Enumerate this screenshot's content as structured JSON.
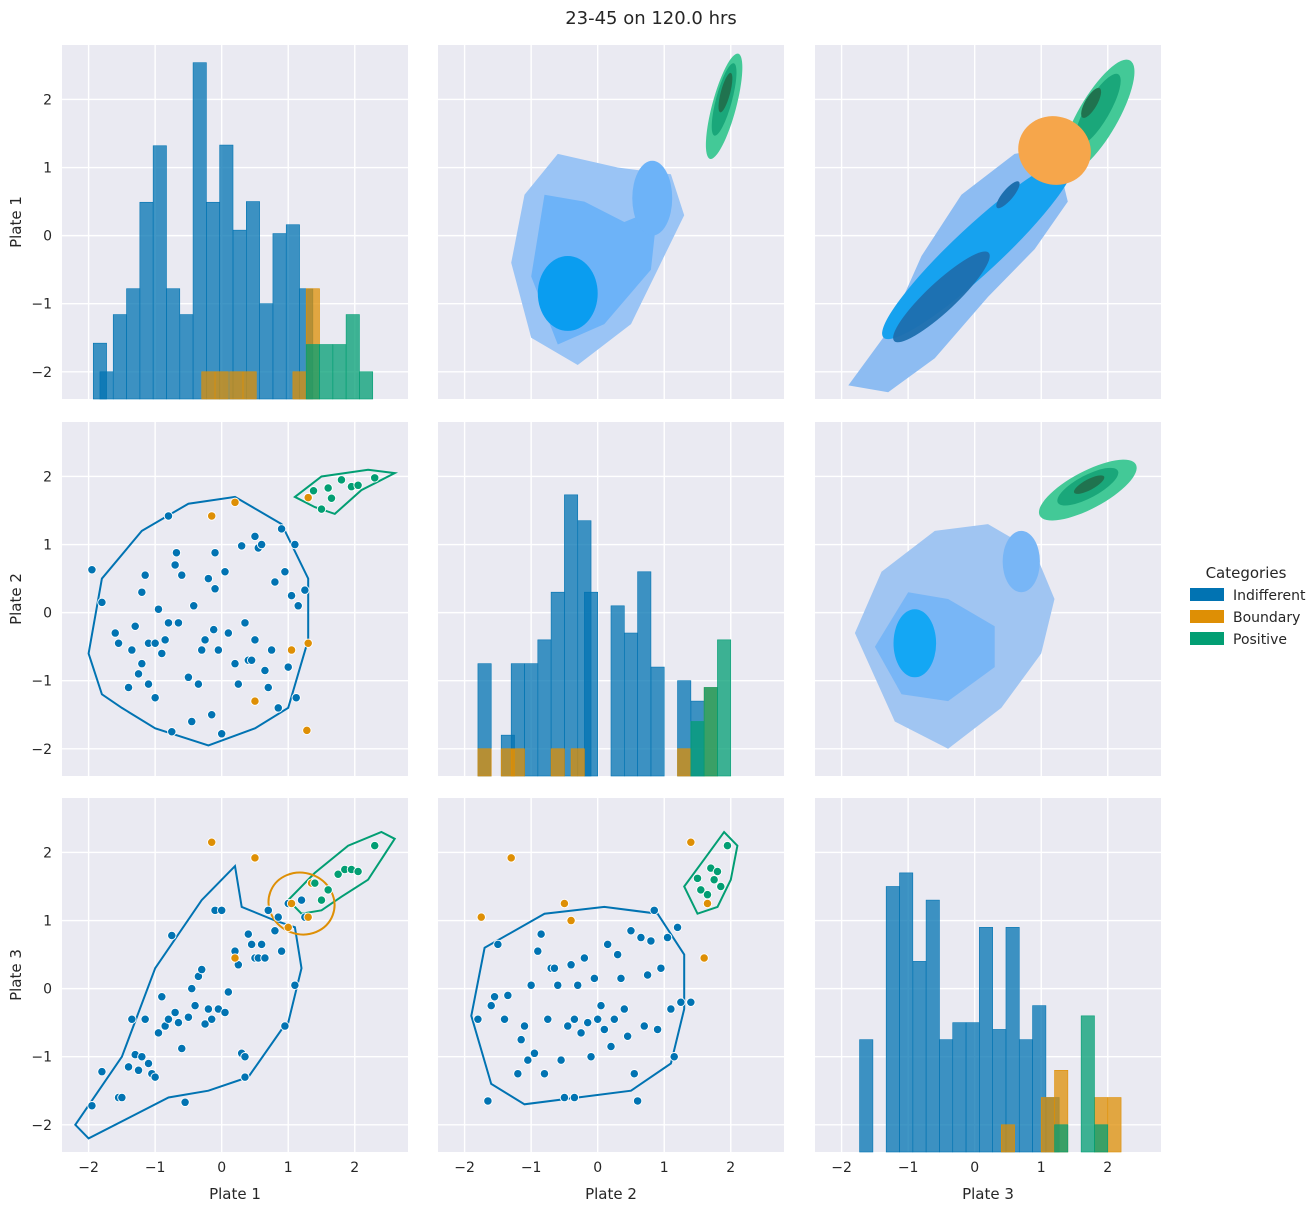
{
  "chart_data": {
    "type": "pairplot",
    "title": "23-45 on 120.0 hrs",
    "variables": [
      "Plate 1",
      "Plate 2",
      "Plate 3"
    ],
    "axis_range": [
      -2.4,
      2.8
    ],
    "ticks": [
      -2,
      -1,
      0,
      1,
      2
    ],
    "tick_labels": [
      "−2",
      "−1",
      "0",
      "1",
      "2"
    ],
    "grid": true,
    "legend": {
      "title": "Categories",
      "placement": "right",
      "items": [
        {
          "name": "Indifferent",
          "color": "#0173b2"
        },
        {
          "name": "Boundary",
          "color": "#de8f05"
        },
        {
          "name": "Positive",
          "color": "#029e73"
        }
      ]
    },
    "panels": {
      "diagonal": "stacked step histograms per category",
      "upper": "filled KDE contours per category",
      "lower": "scatter with one KDE contour line per category"
    },
    "histograms": {
      "Plate 1": {
        "Indifferent": [
          [
            -1.93,
            -1.58
          ],
          [
            -1.83,
            -2.0
          ],
          [
            -1.63,
            -1.16
          ],
          [
            -1.43,
            -0.78
          ],
          [
            -1.23,
            0.49
          ],
          [
            -1.03,
            1.32
          ],
          [
            -0.83,
            -0.78
          ],
          [
            -0.63,
            -1.16
          ],
          [
            -0.43,
            2.54
          ],
          [
            -0.23,
            0.49
          ],
          [
            -0.03,
            1.33
          ],
          [
            0.17,
            0.08
          ],
          [
            0.37,
            0.5
          ],
          [
            0.57,
            -1.0
          ],
          [
            0.77,
            0.03
          ],
          [
            0.97,
            0.16
          ],
          [
            1.17,
            -0.78
          ]
        ],
        "Boundary": [
          [
            -0.3,
            -2.0
          ],
          [
            -0.1,
            -2.0
          ],
          [
            0.12,
            -2.0
          ],
          [
            0.32,
            -2.0
          ],
          [
            1.07,
            -2.0
          ],
          [
            1.27,
            -0.78
          ]
        ],
        "Positive": [
          [
            1.27,
            -1.6
          ],
          [
            1.47,
            -1.6
          ],
          [
            1.67,
            -1.6
          ],
          [
            1.87,
            -1.16
          ],
          [
            2.07,
            -2.0
          ]
        ]
      },
      "Plate 2": {
        "Indifferent": [
          [
            -1.8,
            -0.75
          ],
          [
            -1.45,
            -1.8
          ],
          [
            -1.3,
            -0.75
          ],
          [
            -1.1,
            -0.75
          ],
          [
            -0.9,
            -0.4
          ],
          [
            -0.7,
            0.3
          ],
          [
            -0.5,
            1.73
          ],
          [
            -0.3,
            1.35
          ],
          [
            -0.2,
            0.3
          ],
          [
            0.2,
            0.1
          ],
          [
            0.4,
            -0.3
          ],
          [
            0.6,
            0.6
          ],
          [
            0.8,
            -0.8
          ],
          [
            1.2,
            -1.0
          ],
          [
            1.4,
            -1.3
          ]
        ],
        "Boundary": [
          [
            -1.8,
            -2.0
          ],
          [
            -1.45,
            -2.0
          ],
          [
            -1.3,
            -2.0
          ],
          [
            -0.7,
            -2.0
          ],
          [
            -0.4,
            -2.0
          ],
          [
            1.2,
            -2.0
          ],
          [
            1.6,
            -1.1
          ]
        ],
        "Positive": [
          [
            1.4,
            -1.6
          ],
          [
            1.6,
            -1.1
          ],
          [
            1.8,
            -0.4
          ]
        ]
      },
      "Plate 3": {
        "Indifferent": [
          [
            -1.73,
            -0.75
          ],
          [
            -1.33,
            1.5
          ],
          [
            -1.13,
            1.7
          ],
          [
            -0.93,
            0.4
          ],
          [
            -0.73,
            1.3
          ],
          [
            -0.53,
            -0.75
          ],
          [
            -0.33,
            -0.5
          ],
          [
            -0.13,
            -0.5
          ],
          [
            0.07,
            0.9
          ],
          [
            0.27,
            -0.6
          ],
          [
            0.47,
            0.9
          ],
          [
            0.67,
            -0.75
          ],
          [
            0.87,
            -0.25
          ],
          [
            1.07,
            -1.6
          ]
        ],
        "Boundary": [
          [
            0.4,
            -2.0
          ],
          [
            1.0,
            -1.6
          ],
          [
            1.2,
            -1.2
          ],
          [
            1.8,
            -1.6
          ],
          [
            2.0,
            -1.6
          ]
        ],
        "Positive": [
          [
            1.2,
            -2.0
          ],
          [
            1.6,
            -0.4
          ],
          [
            1.8,
            -2.0
          ]
        ]
      }
    },
    "scatter": {
      "Plate 2 vs Plate 1": {
        "Indifferent": [
          [
            -1.95,
            0.63
          ],
          [
            -1.8,
            0.15
          ],
          [
            -1.6,
            -0.3
          ],
          [
            -1.55,
            -0.45
          ],
          [
            -1.4,
            -1.1
          ],
          [
            -1.35,
            -0.55
          ],
          [
            -1.3,
            -0.2
          ],
          [
            -1.25,
            -0.9
          ],
          [
            -1.2,
            0.3
          ],
          [
            -1.2,
            -0.75
          ],
          [
            -1.15,
            0.55
          ],
          [
            -1.1,
            -0.45
          ],
          [
            -1.0,
            -0.45
          ],
          [
            -1.0,
            -1.25
          ],
          [
            -0.95,
            0.05
          ],
          [
            -0.9,
            -0.6
          ],
          [
            -0.85,
            -0.4
          ],
          [
            -0.8,
            -0.15
          ],
          [
            -0.75,
            -1.75
          ],
          [
            -0.7,
            0.7
          ],
          [
            -0.68,
            0.88
          ],
          [
            -0.65,
            -0.15
          ],
          [
            -0.6,
            0.55
          ],
          [
            -0.5,
            -0.95
          ],
          [
            -0.45,
            -1.6
          ],
          [
            -0.42,
            0.1
          ],
          [
            -0.35,
            -1.05
          ],
          [
            -0.3,
            -0.55
          ],
          [
            -0.25,
            -0.4
          ],
          [
            -0.2,
            0.5
          ],
          [
            -0.15,
            -1.5
          ],
          [
            -0.12,
            -0.25
          ],
          [
            -0.1,
            0.35
          ],
          [
            -0.1,
            0.88
          ],
          [
            -0.05,
            -0.55
          ],
          [
            0.0,
            -1.78
          ],
          [
            0.05,
            0.6
          ],
          [
            0.1,
            -0.3
          ],
          [
            0.2,
            -0.75
          ],
          [
            0.25,
            -1.05
          ],
          [
            0.3,
            0.98
          ],
          [
            0.35,
            -0.15
          ],
          [
            0.4,
            -0.7
          ],
          [
            0.45,
            -0.7
          ],
          [
            0.5,
            1.12
          ],
          [
            0.5,
            -0.4
          ],
          [
            0.55,
            0.95
          ],
          [
            0.6,
            1.0
          ],
          [
            0.65,
            -0.85
          ],
          [
            0.7,
            -1.1
          ],
          [
            0.75,
            -0.55
          ],
          [
            0.8,
            0.45
          ],
          [
            0.85,
            -1.4
          ],
          [
            0.9,
            1.23
          ],
          [
            0.95,
            0.6
          ],
          [
            1.0,
            -0.8
          ],
          [
            1.05,
            0.25
          ],
          [
            1.1,
            1.0
          ],
          [
            1.12,
            -1.25
          ],
          [
            1.15,
            0.1
          ],
          [
            1.25,
            0.33
          ],
          [
            -0.8,
            1.42
          ],
          [
            -1.1,
            -1.05
          ]
        ],
        "Boundary": [
          [
            -0.15,
            1.42
          ],
          [
            0.2,
            1.62
          ],
          [
            1.3,
            1.69
          ],
          [
            0.5,
            -1.3
          ],
          [
            1.3,
            -0.45
          ],
          [
            1.05,
            -0.55
          ],
          [
            1.28,
            -1.73
          ]
        ],
        "Positive": [
          [
            1.38,
            1.79
          ],
          [
            1.5,
            1.52
          ],
          [
            1.6,
            1.83
          ],
          [
            1.65,
            1.68
          ],
          [
            1.8,
            1.95
          ],
          [
            1.95,
            1.85
          ],
          [
            2.05,
            1.87
          ],
          [
            2.3,
            1.98
          ]
        ]
      },
      "Plate 3 vs Plate 1": {
        "Indifferent": [
          [
            -1.95,
            -1.72
          ],
          [
            -1.8,
            -1.22
          ],
          [
            -1.55,
            -1.6
          ],
          [
            -1.5,
            -1.6
          ],
          [
            -1.4,
            -1.15
          ],
          [
            -1.35,
            -0.45
          ],
          [
            -1.3,
            -0.97
          ],
          [
            -1.25,
            -1.2
          ],
          [
            -1.2,
            -1.0
          ],
          [
            -1.15,
            -0.45
          ],
          [
            -1.1,
            -1.1
          ],
          [
            -1.05,
            -1.25
          ],
          [
            -1.0,
            -1.3
          ],
          [
            -0.95,
            -0.65
          ],
          [
            -0.9,
            -0.12
          ],
          [
            -0.85,
            -0.55
          ],
          [
            -0.8,
            -0.45
          ],
          [
            -0.75,
            0.78
          ],
          [
            -0.7,
            -0.35
          ],
          [
            -0.65,
            -0.5
          ],
          [
            -0.6,
            -0.88
          ],
          [
            -0.55,
            -1.67
          ],
          [
            -0.5,
            -0.42
          ],
          [
            -0.45,
            0.0
          ],
          [
            -0.4,
            -0.25
          ],
          [
            -0.35,
            0.18
          ],
          [
            -0.3,
            0.28
          ],
          [
            -0.25,
            -0.52
          ],
          [
            -0.2,
            -0.3
          ],
          [
            -0.15,
            -0.45
          ],
          [
            -0.1,
            1.15
          ],
          [
            -0.05,
            -0.3
          ],
          [
            0.0,
            1.15
          ],
          [
            0.05,
            -0.35
          ],
          [
            0.1,
            -0.05
          ],
          [
            0.2,
            0.55
          ],
          [
            0.25,
            0.35
          ],
          [
            0.3,
            -0.95
          ],
          [
            0.35,
            -1.0
          ],
          [
            0.4,
            0.8
          ],
          [
            0.45,
            0.65
          ],
          [
            0.5,
            0.45
          ],
          [
            0.55,
            0.45
          ],
          [
            0.6,
            0.65
          ],
          [
            0.65,
            0.45
          ],
          [
            0.7,
            1.15
          ],
          [
            0.8,
            0.85
          ],
          [
            0.85,
            1.05
          ],
          [
            0.9,
            0.55
          ],
          [
            0.95,
            -0.55
          ],
          [
            1.0,
            1.25
          ],
          [
            1.1,
            0.05
          ],
          [
            1.2,
            1.3
          ],
          [
            1.25,
            1.05
          ],
          [
            0.35,
            -1.3
          ]
        ],
        "Boundary": [
          [
            -0.15,
            2.15
          ],
          [
            0.5,
            1.92
          ],
          [
            1.0,
            0.9
          ],
          [
            1.05,
            1.25
          ],
          [
            1.3,
            1.05
          ],
          [
            1.35,
            1.55
          ],
          [
            0.2,
            0.45
          ]
        ],
        "Positive": [
          [
            1.4,
            1.55
          ],
          [
            1.5,
            1.3
          ],
          [
            1.6,
            1.45
          ],
          [
            1.75,
            1.68
          ],
          [
            1.85,
            1.75
          ],
          [
            1.95,
            1.75
          ],
          [
            2.05,
            1.72
          ],
          [
            2.3,
            2.1
          ]
        ]
      },
      "Plate 3 vs Plate 2": {
        "Indifferent": [
          [
            -1.8,
            -0.45
          ],
          [
            -1.65,
            -1.65
          ],
          [
            -1.55,
            -0.12
          ],
          [
            -1.5,
            0.65
          ],
          [
            -1.4,
            -0.45
          ],
          [
            -1.35,
            -0.1
          ],
          [
            -1.2,
            -1.25
          ],
          [
            -1.15,
            -0.75
          ],
          [
            -1.1,
            -0.55
          ],
          [
            -1.05,
            -1.05
          ],
          [
            -1.0,
            0.05
          ],
          [
            -0.95,
            -0.95
          ],
          [
            -0.9,
            0.55
          ],
          [
            -0.85,
            0.8
          ],
          [
            -0.8,
            -1.25
          ],
          [
            -0.75,
            -0.45
          ],
          [
            -0.7,
            0.3
          ],
          [
            -0.65,
            0.3
          ],
          [
            -0.6,
            0.05
          ],
          [
            -0.55,
            -1.05
          ],
          [
            -0.5,
            -1.6
          ],
          [
            -0.45,
            -0.55
          ],
          [
            -0.4,
            0.35
          ],
          [
            -0.35,
            -0.45
          ],
          [
            -0.3,
            0.05
          ],
          [
            -0.25,
            -0.65
          ],
          [
            -0.2,
            0.45
          ],
          [
            -0.15,
            -0.5
          ],
          [
            -0.1,
            -1.0
          ],
          [
            -0.05,
            0.15
          ],
          [
            0.0,
            -0.45
          ],
          [
            0.05,
            -0.25
          ],
          [
            0.1,
            -0.6
          ],
          [
            0.15,
            0.65
          ],
          [
            0.2,
            -0.85
          ],
          [
            0.25,
            -0.45
          ],
          [
            0.3,
            0.5
          ],
          [
            0.35,
            0.15
          ],
          [
            0.4,
            -0.3
          ],
          [
            0.45,
            -0.7
          ],
          [
            0.5,
            0.85
          ],
          [
            0.55,
            -1.25
          ],
          [
            0.6,
            -1.65
          ],
          [
            0.65,
            0.75
          ],
          [
            0.7,
            -0.55
          ],
          [
            0.75,
            0.2
          ],
          [
            0.8,
            0.7
          ],
          [
            0.85,
            1.15
          ],
          [
            0.9,
            -0.6
          ],
          [
            0.95,
            0.3
          ],
          [
            1.05,
            0.75
          ],
          [
            1.1,
            -0.3
          ],
          [
            1.15,
            -1.0
          ],
          [
            1.2,
            0.9
          ],
          [
            1.25,
            -0.2
          ],
          [
            1.4,
            -0.2
          ],
          [
            -0.35,
            -1.6
          ],
          [
            -1.6,
            -0.25
          ]
        ],
        "Boundary": [
          [
            -1.75,
            1.05
          ],
          [
            -1.3,
            1.92
          ],
          [
            -0.5,
            1.25
          ],
          [
            -0.4,
            1.0
          ],
          [
            1.4,
            2.15
          ],
          [
            1.6,
            0.45
          ],
          [
            1.65,
            1.25
          ]
        ],
        "Positive": [
          [
            1.5,
            1.62
          ],
          [
            1.55,
            1.45
          ],
          [
            1.65,
            1.38
          ],
          [
            1.7,
            1.77
          ],
          [
            1.75,
            1.6
          ],
          [
            1.8,
            1.72
          ],
          [
            1.85,
            1.5
          ],
          [
            1.95,
            2.1
          ]
        ]
      }
    }
  }
}
